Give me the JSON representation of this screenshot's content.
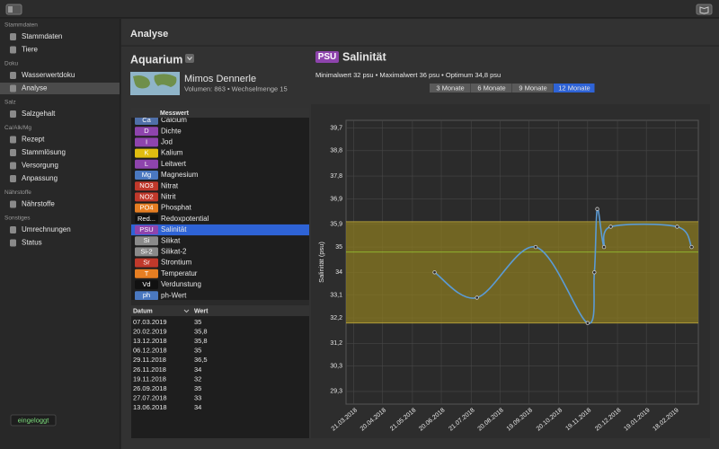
{
  "sidebar": {
    "sections": [
      {
        "title": "Stammdaten",
        "items": [
          "Stammdaten",
          "Tiere"
        ]
      },
      {
        "title": "Doku",
        "items": [
          "Wasserwertdoku",
          "Analyse"
        ]
      },
      {
        "title": "Salz",
        "items": [
          "Salzgehalt"
        ]
      },
      {
        "title": "Ca/Alk/Mg",
        "items": [
          "Rezept",
          "Stammlösung",
          "Versorgung",
          "Anpassung"
        ]
      },
      {
        "title": "Nährstoffe",
        "items": [
          "Nährstoffe"
        ]
      },
      {
        "title": "Sonstiges",
        "items": [
          "Umrechnungen",
          "Status"
        ]
      }
    ],
    "selected": "Analyse",
    "status": "eingeloggt"
  },
  "header": {
    "title": "Analyse"
  },
  "aquarium": {
    "title": "Aquarium",
    "name": "Mimos Dennerle",
    "details": "Volumen: 863 • Wechselmenge 15"
  },
  "parameters": {
    "column": "Messwert",
    "selected": "Salinität",
    "rows": [
      {
        "badge": "Ca",
        "name": "Calcium",
        "color": "#4f6fa8"
      },
      {
        "badge": "D",
        "name": "Dichte",
        "color": "#8e44ad"
      },
      {
        "badge": "I",
        "name": "Jod",
        "color": "#8e44ad"
      },
      {
        "badge": "K",
        "name": "Kalium",
        "color": "#e0bd10"
      },
      {
        "badge": "L",
        "name": "Leitwert",
        "color": "#8e44ad"
      },
      {
        "badge": "Mg",
        "name": "Magnesium",
        "color": "#4a78c0"
      },
      {
        "badge": "NO3",
        "name": "Nitrat",
        "color": "#c0392b"
      },
      {
        "badge": "NO2",
        "name": "Nitrit",
        "color": "#c0392b"
      },
      {
        "badge": "PO4",
        "name": "Phosphat",
        "color": "#e67e22"
      },
      {
        "badge": "Red...",
        "name": "Redoxpotential",
        "color": "#111111"
      },
      {
        "badge": "PSU",
        "name": "Salinität",
        "color": "#8e44ad"
      },
      {
        "badge": "Si",
        "name": "Silikat",
        "color": "#8a8a8a"
      },
      {
        "badge": "Si-2",
        "name": "Silikat-2",
        "color": "#8a8a8a"
      },
      {
        "badge": "Sr",
        "name": "Strontium",
        "color": "#c0392b"
      },
      {
        "badge": "T",
        "name": "Temperatur",
        "color": "#e67e22"
      },
      {
        "badge": "Vd",
        "name": "Verdunstung",
        "color": "#111111"
      },
      {
        "badge": "ph",
        "name": "ph-Wert",
        "color": "#4a78c0"
      }
    ]
  },
  "measurements": {
    "columns": [
      "Datum",
      "Wert"
    ],
    "rows": [
      [
        "07.03.2019",
        "35"
      ],
      [
        "20.02.2019",
        "35,8"
      ],
      [
        "13.12.2018",
        "35,8"
      ],
      [
        "06.12.2018",
        "35"
      ],
      [
        "29.11.2018",
        "36,5"
      ],
      [
        "26.11.2018",
        "34"
      ],
      [
        "19.11.2018",
        "32"
      ],
      [
        "26.09.2018",
        "35"
      ],
      [
        "27.07.2018",
        "33"
      ],
      [
        "13.06.2018",
        "34"
      ]
    ]
  },
  "chart": {
    "type": "line",
    "badge": "PSU",
    "badge_color": "#8e44ad",
    "title": "Salinität",
    "summary": "Minimalwert 32 psu • Maximalwert 36 psu • Optimum 34,8 psu",
    "ranges": [
      "3 Monate",
      "6 Monate",
      "9 Monate",
      "12 Monate"
    ],
    "selected_range": "12 Monate",
    "ylabel": "Salinität (psu)",
    "x": [
      "13.06.2018",
      "27.07.2018",
      "26.09.2018",
      "19.11.2018",
      "26.11.2018",
      "29.11.2018",
      "06.12.2018",
      "13.12.2018",
      "20.02.2019",
      "07.03.2019"
    ],
    "values": [
      34,
      33,
      35,
      32,
      34,
      36.5,
      35,
      35.8,
      35.8,
      35
    ],
    "color": "#5b9bd5",
    "band": [
      32,
      36
    ],
    "band_color": "#8a7a22",
    "optimum": 34.8,
    "optimum_color": "#9acd32",
    "xlim": [
      "13.03.2018",
      "14.03.2019"
    ],
    "xticks": [
      "21.03.2018",
      "20.04.2018",
      "21.05.2018",
      "20.06.2018",
      "21.07.2018",
      "20.08.2018",
      "19.09.2018",
      "20.10.2018",
      "19.11.2018",
      "20.12.2018",
      "19.01.2019",
      "18.02.2019"
    ],
    "ylim": [
      28.8,
      40
    ],
    "yticks": [
      {
        "value": 39.7,
        "label": "39,7"
      },
      {
        "value": 38.8,
        "label": "38,8"
      },
      {
        "value": 37.8,
        "label": "37,8"
      },
      {
        "value": 36.9,
        "label": "36,9"
      },
      {
        "value": 35.9,
        "label": "35,9"
      },
      35,
      34,
      {
        "value": 33.1,
        "label": "33,1"
      },
      {
        "value": 32.2,
        "label": "32,2"
      },
      {
        "value": 31.2,
        "label": "31,2"
      },
      {
        "value": 30.3,
        "label": "30,3"
      },
      {
        "value": 29.3,
        "label": "29,3"
      }
    ],
    "grid": true
  }
}
